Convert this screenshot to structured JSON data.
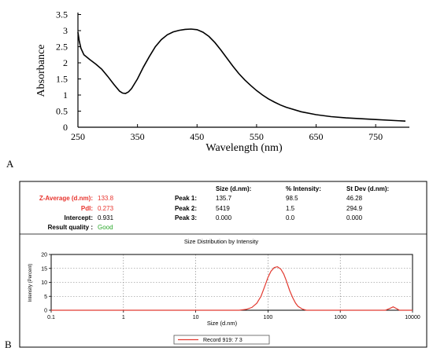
{
  "panel_a": {
    "label": "A",
    "chart_data": {
      "type": "line",
      "xlabel": "Wavelength (nm)",
      "ylabel": "Absorbance",
      "xlim": [
        250,
        800
      ],
      "ylim": [
        0,
        3.5
      ],
      "x_ticks": [
        250,
        350,
        450,
        550,
        650,
        750
      ],
      "y_ticks": [
        0,
        0.5,
        1,
        1.5,
        2,
        2.5,
        3,
        3.5
      ],
      "grid": false,
      "series": [
        {
          "color": "#000000",
          "x": [
            250,
            252,
            255,
            260,
            270,
            280,
            290,
            300,
            310,
            320,
            325,
            330,
            335,
            340,
            350,
            360,
            370,
            380,
            390,
            400,
            410,
            420,
            430,
            440,
            450,
            460,
            470,
            480,
            490,
            500,
            510,
            520,
            530,
            540,
            550,
            560,
            570,
            580,
            590,
            600,
            625,
            650,
            675,
            700,
            750,
            800
          ],
          "y": [
            2.95,
            2.7,
            2.45,
            2.25,
            2.1,
            1.96,
            1.8,
            1.58,
            1.34,
            1.12,
            1.06,
            1.05,
            1.1,
            1.2,
            1.5,
            1.87,
            2.2,
            2.5,
            2.72,
            2.87,
            2.96,
            3.01,
            3.04,
            3.05,
            3.03,
            2.95,
            2.82,
            2.63,
            2.4,
            2.15,
            1.9,
            1.67,
            1.47,
            1.3,
            1.14,
            1.0,
            0.88,
            0.78,
            0.69,
            0.62,
            0.48,
            0.39,
            0.33,
            0.29,
            0.24,
            0.19
          ]
        }
      ]
    }
  },
  "panel_b": {
    "label": "B",
    "results": {
      "zavg_label": "Z-Average (d.nm):",
      "zavg_value": "133.8",
      "pdi_label": "PdI:",
      "pdi_value": "0.273",
      "intercept_label": "Intercept:",
      "intercept_value": "0.931",
      "quality_label": "Result quality :",
      "quality_value": "Good",
      "red_color": "#e8332d",
      "good_color": "#2ba82b"
    },
    "peak_table": {
      "headers": [
        "Size (d.nm):",
        "% Intensity:",
        "St Dev (d.nm):"
      ],
      "rows": [
        {
          "label": "Peak 1:",
          "size": "135.7",
          "intensity": "98.5",
          "stdev": "46.28"
        },
        {
          "label": "Peak 2:",
          "size": "5419",
          "intensity": "1.5",
          "stdev": "294.9"
        },
        {
          "label": "Peak 3:",
          "size": "0.000",
          "intensity": "0.0",
          "stdev": "0.000"
        }
      ]
    },
    "chart_data": {
      "type": "line",
      "title": "Size Distribution by Intensity",
      "xlabel": "Size (d.nm)",
      "ylabel": "Intensity (Percent)",
      "x_scale": "log",
      "xlim": [
        0.1,
        10000
      ],
      "ylim": [
        0,
        20
      ],
      "x_ticks": [
        "0.1",
        "1",
        "10",
        "100",
        "1000",
        "10000"
      ],
      "y_ticks": [
        "0",
        "5",
        "10",
        "15",
        "20"
      ],
      "grid": true,
      "legend": "bottom-center",
      "series": [
        {
          "name": "Record 919: 7 3",
          "color": "#e23a30",
          "x": [
            0.1,
            40,
            50,
            60,
            70,
            80,
            90,
            100,
            110,
            122,
            135,
            150,
            165,
            180,
            200,
            220,
            240,
            260,
            300,
            340,
            4200,
            4800,
            5400,
            6000,
            6600,
            10000
          ],
          "y": [
            0,
            0,
            0.3,
            1.0,
            2.5,
            5.0,
            8.5,
            11.8,
            14.0,
            15.3,
            15.6,
            14.8,
            13.0,
            10.5,
            7.0,
            4.5,
            2.6,
            1.4,
            0.4,
            0,
            0,
            0.6,
            1.2,
            0.6,
            0,
            0
          ]
        }
      ]
    }
  }
}
